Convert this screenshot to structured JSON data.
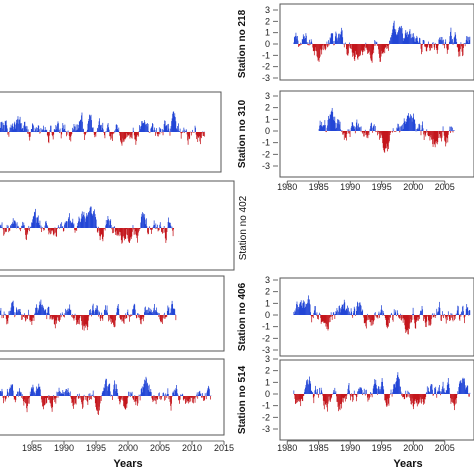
{
  "chart_data": {
    "type": "bar",
    "description_of_series": "standardized anomaly index per month, positive bars blue, negative bars red",
    "colors": {
      "positive": "#2346d6",
      "negative": "#c4161c"
    },
    "x_label": "Years",
    "ylim": [
      -3,
      3
    ],
    "panels": [
      {
        "key": "p218",
        "station": "Station no 218",
        "label_bold": true,
        "yticks": [
          "3",
          "2",
          "1",
          "0",
          "-1",
          "-2",
          "-3"
        ],
        "show_yticks": true,
        "xlim": [
          1979.5,
          2009
        ],
        "x_start": 1981,
        "x_end": 2009,
        "xticks": [],
        "show_xlabel": false
      },
      {
        "key": "p310",
        "station": "Station no 310",
        "label_bold": true,
        "yticks": [
          "3",
          "2",
          "1",
          "0",
          "-1",
          "-2",
          "-3"
        ],
        "show_yticks": true,
        "xlim": [
          1979.5,
          2009
        ],
        "x_start": 1985,
        "x_end": 2006.5,
        "xticks": [
          "1980",
          "1985",
          "1990",
          "1995",
          "2000",
          "2005"
        ],
        "show_xlabel": false
      },
      {
        "key": "p402",
        "station": "Station no 402",
        "label_bold": false,
        "yticks": [],
        "show_yticks": false,
        "xlim": [
          1980,
          2015
        ],
        "x_start": 1980,
        "x_end": 2006,
        "xticks": [],
        "show_xlabel": false
      },
      {
        "key": "p406",
        "station": "Station no 406",
        "label_bold": true,
        "yticks": [
          "3",
          "2",
          "1",
          "0",
          "-1",
          "-2",
          "-3"
        ],
        "show_yticks": true,
        "xlim": [
          1979.5,
          2009
        ],
        "x_start": 1981,
        "x_end": 2009,
        "xticks": [],
        "show_xlabel": false
      },
      {
        "key": "p514",
        "station": "Station no 514",
        "label_bold": true,
        "yticks": [
          "3",
          "2",
          "1",
          "0",
          "-1",
          "-2",
          "-3"
        ],
        "show_yticks": true,
        "xlim": [
          1979.5,
          2009
        ],
        "x_start": 1981,
        "x_end": 2009,
        "xticks": [
          "1980",
          "1985",
          "1990",
          "1995",
          "2000",
          "2005"
        ],
        "show_xlabel": true
      },
      {
        "key": "left1",
        "station": "",
        "label_bold": false,
        "yticks": [],
        "show_yticks": false,
        "xlim": [
          1980,
          2015
        ],
        "x_start": 1980,
        "x_end": 2012,
        "xticks": [],
        "show_xlabel": false
      },
      {
        "key": "left3",
        "station": "",
        "label_bold": false,
        "yticks": [],
        "show_yticks": false,
        "xlim": [
          1980,
          2015
        ],
        "x_start": 1980,
        "x_end": 2007.5,
        "xticks": [],
        "show_xlabel": false
      },
      {
        "key": "left4",
        "station": "",
        "label_bold": false,
        "yticks": [],
        "show_yticks": false,
        "xlim": [
          1980,
          2015
        ],
        "x_start": 1980,
        "x_end": 2013,
        "xticks": [
          "1985",
          "1990",
          "1995",
          "2000",
          "2005",
          "2010",
          "2015"
        ],
        "show_xlabel": true
      }
    ]
  }
}
